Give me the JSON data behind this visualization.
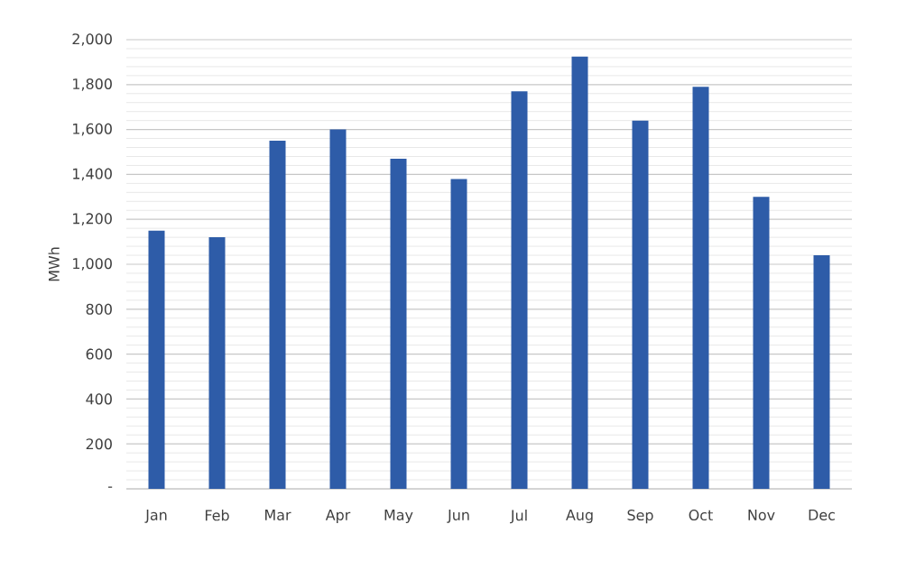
{
  "chart_data": {
    "type": "bar",
    "ylabel": "MWh",
    "categories": [
      "Jan",
      "Feb",
      "Mar",
      "Apr",
      "May",
      "Jun",
      "Jul",
      "Aug",
      "Sep",
      "Oct",
      "Nov",
      "Dec"
    ],
    "values": [
      1150,
      1120,
      1550,
      1600,
      1470,
      1380,
      1770,
      1925,
      1640,
      1790,
      1300,
      1040
    ],
    "color": "#2e5ca8",
    "ylim": [
      0,
      2000
    ],
    "yticks": [
      {
        "value": 0,
        "label": "-"
      },
      {
        "value": 200,
        "label": "200"
      },
      {
        "value": 400,
        "label": "400"
      },
      {
        "value": 600,
        "label": "600"
      },
      {
        "value": 800,
        "label": "800"
      },
      {
        "value": 1000,
        "label": "1,000"
      },
      {
        "value": 1200,
        "label": "1,200"
      },
      {
        "value": 1400,
        "label": "1,400"
      },
      {
        "value": 1600,
        "label": "1,600"
      },
      {
        "value": 1800,
        "label": "1,800"
      },
      {
        "value": 2000,
        "label": "2,000"
      }
    ],
    "grid": "y"
  }
}
